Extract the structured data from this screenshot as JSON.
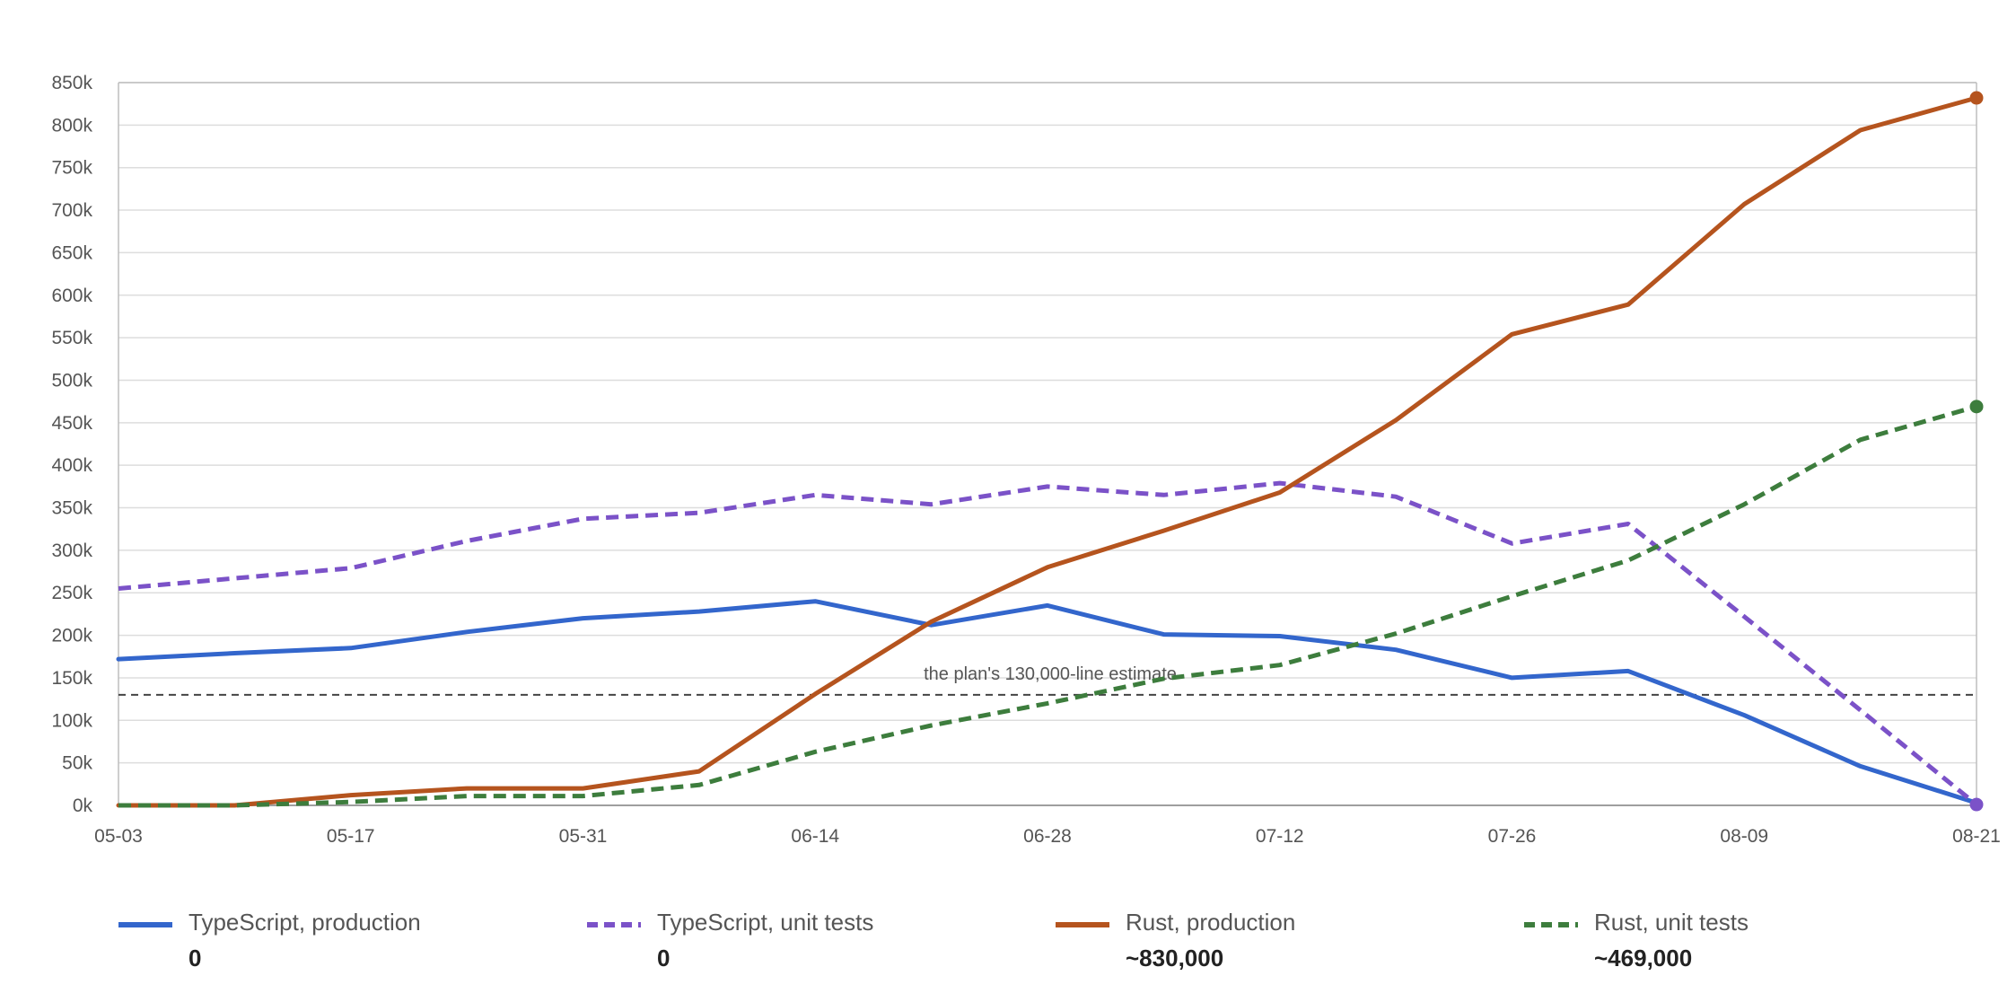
{
  "chart_data": {
    "type": "line",
    "x": [
      "05-03",
      "05-10",
      "05-17",
      "05-24",
      "05-31",
      "06-07",
      "06-14",
      "06-21",
      "06-28",
      "07-05",
      "07-12",
      "07-19",
      "07-26",
      "08-02",
      "08-09",
      "08-16",
      "08-21"
    ],
    "x_tick_labels": [
      "05-03",
      "05-17",
      "05-31",
      "06-14",
      "06-28",
      "07-12",
      "07-26",
      "08-09",
      "08-21"
    ],
    "y_tick_labels": [
      "0k",
      "50k",
      "100k",
      "150k",
      "200k",
      "250k",
      "300k",
      "350k",
      "400k",
      "450k",
      "500k",
      "550k",
      "600k",
      "650k",
      "700k",
      "750k",
      "800k",
      "850k"
    ],
    "ylim": [
      0,
      850000
    ],
    "grid": true,
    "legend_position": "bottom",
    "reference_line": {
      "value": 130000,
      "label": "the plan's 130,000-line estimate"
    },
    "series": [
      {
        "name": "TypeScript, production",
        "final_value_label": "0",
        "color": "#3366cc",
        "dashed": false,
        "end_marker": false,
        "values": [
          172000,
          179000,
          185000,
          204000,
          220000,
          228000,
          240000,
          212000,
          235000,
          201000,
          199000,
          183000,
          150000,
          158000,
          106000,
          46000,
          3000
        ]
      },
      {
        "name": "TypeScript, unit tests",
        "final_value_label": "0",
        "color": "#7b52c8",
        "dashed": true,
        "end_marker": true,
        "values": [
          255000,
          267000,
          279000,
          311000,
          337000,
          344000,
          365000,
          354000,
          375000,
          365000,
          379000,
          363000,
          308000,
          331000,
          222000,
          112000,
          1000
        ]
      },
      {
        "name": "Rust, production",
        "final_value_label": "~830,000",
        "color": "#b5541e",
        "dashed": false,
        "end_marker": true,
        "values": [
          0,
          0,
          12000,
          20000,
          20000,
          40000,
          131000,
          216000,
          280000,
          323000,
          368000,
          453000,
          554000,
          589000,
          707000,
          794000,
          832000
        ]
      },
      {
        "name": "Rust, unit tests",
        "final_value_label": "~469,000",
        "color": "#3d7d3d",
        "dashed": true,
        "end_marker": true,
        "values": [
          0,
          0,
          4000,
          11000,
          11000,
          24000,
          63000,
          94000,
          120000,
          149000,
          165000,
          202000,
          246000,
          288000,
          354000,
          430000,
          469000
        ]
      }
    ]
  }
}
